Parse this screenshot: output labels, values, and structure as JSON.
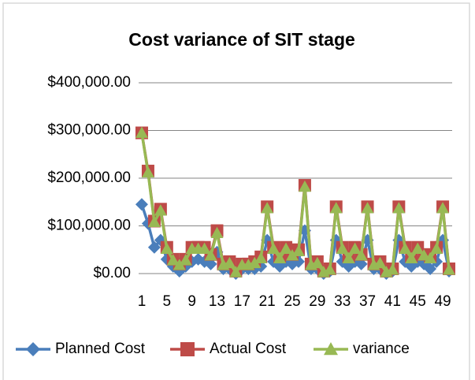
{
  "chart_data": {
    "type": "line",
    "title": "Cost variance of SIT stage",
    "categories": [
      "1",
      null,
      null,
      null,
      "5",
      null,
      null,
      null,
      "9",
      null,
      null,
      null,
      "13",
      null,
      null,
      null,
      "17",
      null,
      null,
      null,
      "21",
      null,
      null,
      null,
      "25",
      null,
      null,
      null,
      "29",
      null,
      null,
      null,
      "33",
      null,
      null,
      null,
      "37",
      null,
      null,
      null,
      "41",
      null,
      null,
      null,
      "45",
      null,
      null,
      null,
      "49",
      null
    ],
    "series": [
      {
        "name": "Planned Cost",
        "color": "#4a7ebb",
        "marker": "diamond",
        "values": [
          145000,
          105000,
          55000,
          70000,
          30000,
          15000,
          5000,
          15000,
          25000,
          30000,
          25000,
          20000,
          45000,
          10000,
          10000,
          0,
          10000,
          10000,
          10000,
          15000,
          70000,
          25000,
          15000,
          25000,
          20000,
          25000,
          90000,
          10000,
          10000,
          0,
          5000,
          70000,
          25000,
          15000,
          25000,
          20000,
          70000,
          10000,
          10000,
          0,
          5000,
          70000,
          25000,
          15000,
          25000,
          20000,
          10000,
          25000,
          70000,
          5000
        ]
      },
      {
        "name": "Actual Cost",
        "color": "#be4b48",
        "marker": "square",
        "values": [
          295000,
          215000,
          110000,
          135000,
          55000,
          30000,
          20000,
          30000,
          55000,
          55000,
          55000,
          40000,
          90000,
          20000,
          25000,
          5000,
          20000,
          20000,
          25000,
          35000,
          140000,
          55000,
          35000,
          55000,
          40000,
          50000,
          185000,
          20000,
          25000,
          5000,
          10000,
          140000,
          55000,
          35000,
          55000,
          40000,
          140000,
          20000,
          25000,
          5000,
          10000,
          140000,
          55000,
          35000,
          55000,
          40000,
          35000,
          55000,
          140000,
          10000
        ]
      },
      {
        "name": "variance",
        "color": "#98b954",
        "marker": "triangle",
        "values": [
          295000,
          212000,
          108000,
          132000,
          52000,
          28000,
          18000,
          28000,
          52000,
          52000,
          52000,
          38000,
          85000,
          18000,
          22000,
          3000,
          18000,
          18000,
          22000,
          32000,
          137000,
          52000,
          32000,
          52000,
          38000,
          47000,
          182000,
          18000,
          22000,
          3000,
          8000,
          137000,
          52000,
          32000,
          52000,
          38000,
          137000,
          18000,
          22000,
          3000,
          8000,
          137000,
          52000,
          32000,
          52000,
          38000,
          32000,
          52000,
          137000,
          8000
        ]
      }
    ],
    "ylim": [
      0,
      400000
    ],
    "yticks": [
      {
        "value": 0,
        "label": "$0.00"
      },
      {
        "value": 100000,
        "label": "$100,000.00"
      },
      {
        "value": 200000,
        "label": "$200,000.00"
      },
      {
        "value": 300000,
        "label": "$300,000.00"
      },
      {
        "value": 400000,
        "label": "$400,000.00"
      }
    ],
    "grid": true,
    "legend": "bottom"
  }
}
